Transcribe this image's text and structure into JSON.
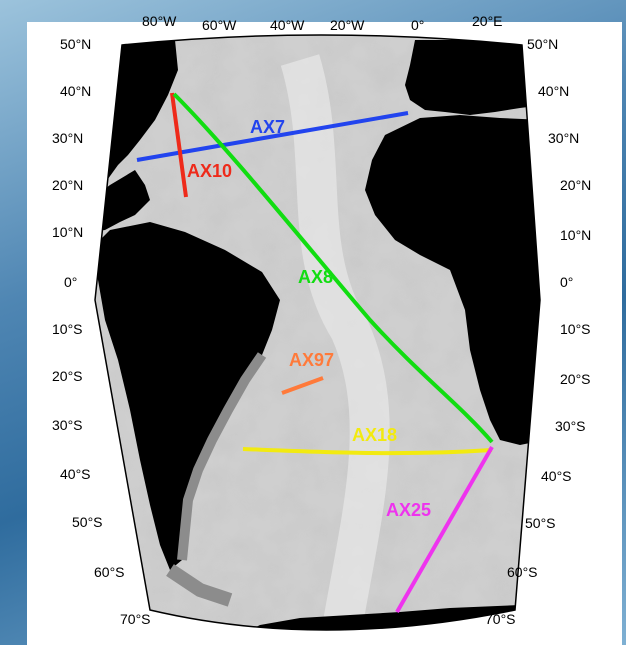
{
  "map": {
    "lon_labels_top": [
      "80°W",
      "60°W",
      "40°W",
      "20°W",
      "0°",
      "20°E"
    ],
    "lat_labels": [
      "50°N",
      "40°N",
      "30°N",
      "20°N",
      "10°N",
      "0°",
      "10°S",
      "20°S",
      "30°S",
      "40°S",
      "50°S",
      "60°S",
      "70°S"
    ],
    "colors": {
      "land": "#000000",
      "ocean_deep": "#cfcfcf",
      "ocean_shelf": "#8c8c8c"
    }
  },
  "tracks": [
    {
      "id": "AX7",
      "label": "AX7",
      "color": "#2244ee"
    },
    {
      "id": "AX10",
      "label": "AX10",
      "color": "#ee2a1a"
    },
    {
      "id": "AX8",
      "label": "AX8",
      "color": "#11dd11"
    },
    {
      "id": "AX97",
      "label": "AX97",
      "color": "#ff7a3a"
    },
    {
      "id": "AX18",
      "label": "AX18",
      "color": "#f2ea10"
    },
    {
      "id": "AX25",
      "label": "AX25",
      "color": "#ee33ee"
    }
  ]
}
